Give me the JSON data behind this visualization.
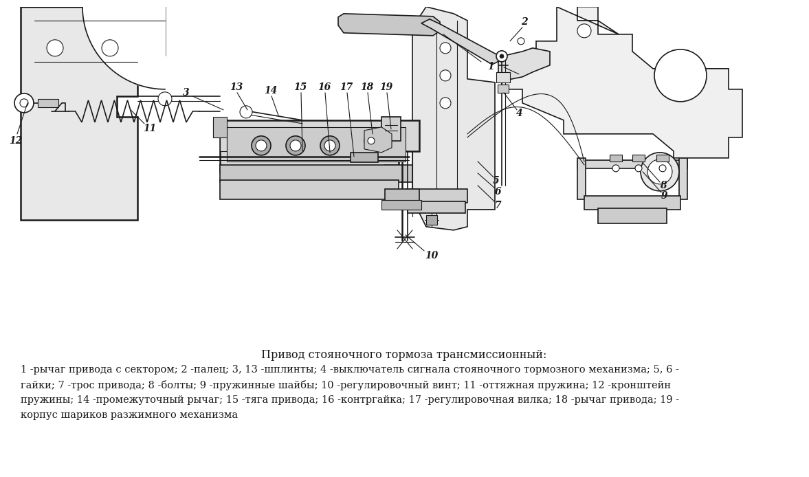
{
  "title": "Привод стояночного тормоза трансмиссионный:",
  "caption_lines": [
    "1 -рычаг привода с сектором; 2 -палец; 3, 13 -шплинты; 4 -выключатель сигнала стояночного тормозного механизма; 5, 6 -",
    "гайки; 7 -трос привода; 8 -болты; 9 -пружинные шайбы; 10 -регулировочный винт; 11 -оттяжная пружина; 12 -кронштейн",
    "пружины; 14 -промежуточный рычаг; 15 -тяга привода; 16 -контргайка; 17 -регулировочная вилка; 18 -рычаг привода; 19 -",
    "корпус шариков разжимного механизма"
  ],
  "fig_width": 11.77,
  "fig_height": 6.94,
  "dpi": 100,
  "bg_color": "#ffffff",
  "text_color": "#1a1a1a",
  "title_fontsize": 11.5,
  "caption_fontsize": 10.5
}
